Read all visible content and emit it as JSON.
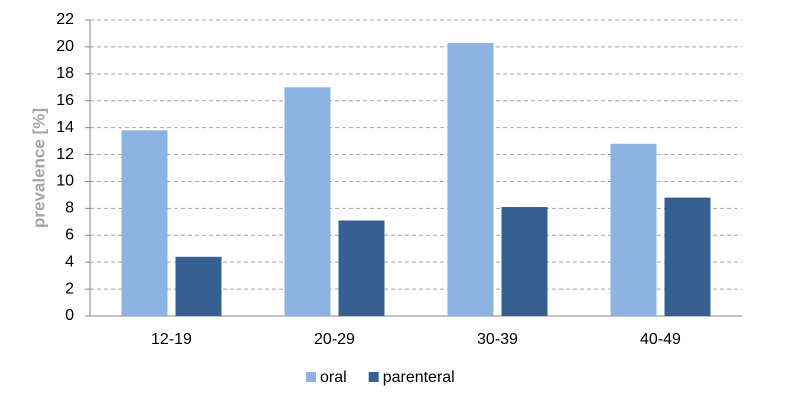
{
  "chart_data": {
    "type": "bar",
    "ylabel": "prevalence [%]",
    "categories": [
      "12-19",
      "20-29",
      "30-39",
      "40-49"
    ],
    "series": [
      {
        "name": "oral",
        "color": "#8db3e2",
        "values": [
          13.8,
          17.0,
          20.3,
          12.8
        ]
      },
      {
        "name": "parenteral",
        "color": "#366092",
        "values": [
          4.4,
          7.1,
          8.1,
          8.8
        ]
      }
    ],
    "ylim": [
      0,
      22
    ],
    "yticks": [
      0,
      2,
      4,
      6,
      8,
      10,
      12,
      14,
      16,
      18,
      20,
      22
    ],
    "grid": true,
    "legend": "bottom"
  }
}
